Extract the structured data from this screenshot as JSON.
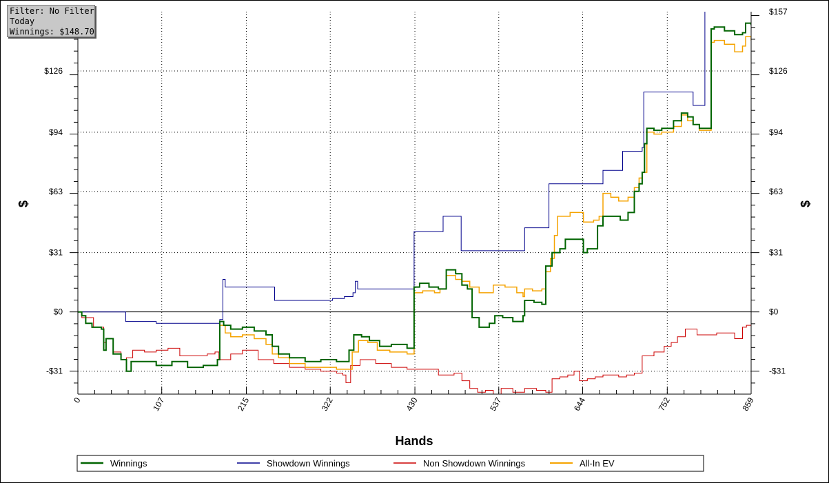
{
  "info": {
    "filter": "Filter: No Filter",
    "period": "Today",
    "winnings": "Winnings: $148.70"
  },
  "chart_data": {
    "type": "line",
    "title": "",
    "xlabel": "Hands",
    "ylabel": "$",
    "xlim": [
      0,
      859
    ],
    "ylim": [
      -43,
      157
    ],
    "x_ticks": [
      0,
      107,
      215,
      322,
      430,
      537,
      644,
      752,
      859
    ],
    "y_ticks": [
      {
        "value": 157,
        "label": "$157"
      },
      {
        "value": 126,
        "label": "$126"
      },
      {
        "value": 94,
        "label": "$94"
      },
      {
        "value": 63,
        "label": "$63"
      },
      {
        "value": 31,
        "label": "$31"
      },
      {
        "value": 0,
        "label": "$0"
      },
      {
        "value": -31,
        "label": "-$31"
      }
    ],
    "grid": true,
    "legend": "bottom",
    "series": [
      {
        "name": "Winnings",
        "color": "#006400",
        "width": 2,
        "points": [
          [
            0,
            0
          ],
          [
            5,
            -2
          ],
          [
            10,
            -6
          ],
          [
            18,
            -8
          ],
          [
            30,
            -9
          ],
          [
            33,
            -20
          ],
          [
            36,
            -14
          ],
          [
            45,
            -22
          ],
          [
            55,
            -25
          ],
          [
            62,
            -31
          ],
          [
            68,
            -26
          ],
          [
            80,
            -26
          ],
          [
            100,
            -28
          ],
          [
            120,
            -26
          ],
          [
            140,
            -29
          ],
          [
            160,
            -28
          ],
          [
            178,
            -25
          ],
          [
            181,
            -5
          ],
          [
            186,
            -7
          ],
          [
            195,
            -9
          ],
          [
            210,
            -8
          ],
          [
            225,
            -10
          ],
          [
            240,
            -12
          ],
          [
            248,
            -18
          ],
          [
            256,
            -22
          ],
          [
            270,
            -24
          ],
          [
            290,
            -26
          ],
          [
            310,
            -25
          ],
          [
            330,
            -26
          ],
          [
            343,
            -26
          ],
          [
            346,
            -20
          ],
          [
            352,
            -12
          ],
          [
            362,
            -13
          ],
          [
            372,
            -15
          ],
          [
            385,
            -18
          ],
          [
            400,
            -17
          ],
          [
            420,
            -19
          ],
          [
            428,
            -19
          ],
          [
            429,
            13
          ],
          [
            436,
            15
          ],
          [
            448,
            13
          ],
          [
            460,
            12
          ],
          [
            470,
            22
          ],
          [
            482,
            20
          ],
          [
            490,
            14
          ],
          [
            497,
            12
          ],
          [
            503,
            -3
          ],
          [
            512,
            -8
          ],
          [
            520,
            -8
          ],
          [
            525,
            -6
          ],
          [
            532,
            -2
          ],
          [
            542,
            -3
          ],
          [
            555,
            -5
          ],
          [
            567,
            -5
          ],
          [
            568,
            -2
          ],
          [
            570,
            6
          ],
          [
            582,
            5
          ],
          [
            592,
            4
          ],
          [
            597,
            24
          ],
          [
            605,
            31
          ],
          [
            615,
            33
          ],
          [
            622,
            38
          ],
          [
            632,
            38
          ],
          [
            645,
            31
          ],
          [
            650,
            33
          ],
          [
            658,
            33
          ],
          [
            663,
            45
          ],
          [
            670,
            50
          ],
          [
            680,
            50
          ],
          [
            692,
            48
          ],
          [
            702,
            52
          ],
          [
            710,
            63
          ],
          [
            716,
            67
          ],
          [
            720,
            73
          ],
          [
            723,
            88
          ],
          [
            726,
            96
          ],
          [
            735,
            95
          ],
          [
            745,
            96
          ],
          [
            752,
            96
          ],
          [
            760,
            100
          ],
          [
            770,
            104
          ],
          [
            778,
            102
          ],
          [
            785,
            98
          ],
          [
            793,
            96
          ],
          [
            802,
            96
          ],
          [
            808,
            148
          ],
          [
            812,
            149
          ],
          [
            825,
            147
          ],
          [
            838,
            145
          ],
          [
            848,
            146
          ],
          [
            852,
            151
          ],
          [
            859,
            150
          ]
        ]
      },
      {
        "name": "Showdown Winnings",
        "color": "#00008b",
        "width": 1,
        "points": [
          [
            0,
            0
          ],
          [
            60,
            0
          ],
          [
            61,
            -5
          ],
          [
            80,
            -5
          ],
          [
            100,
            -6
          ],
          [
            140,
            -6
          ],
          [
            175,
            -6
          ],
          [
            181,
            -4
          ],
          [
            185,
            17
          ],
          [
            188,
            13
          ],
          [
            230,
            13
          ],
          [
            250,
            13
          ],
          [
            251,
            6
          ],
          [
            300,
            6
          ],
          [
            325,
            7
          ],
          [
            340,
            8
          ],
          [
            351,
            10
          ],
          [
            354,
            16
          ],
          [
            357,
            12
          ],
          [
            400,
            12
          ],
          [
            428,
            12
          ],
          [
            429,
            42
          ],
          [
            465,
            42
          ],
          [
            466,
            50
          ],
          [
            488,
            50
          ],
          [
            489,
            32
          ],
          [
            520,
            32
          ],
          [
            565,
            32
          ],
          [
            570,
            44
          ],
          [
            597,
            44
          ],
          [
            601,
            67
          ],
          [
            665,
            67
          ],
          [
            670,
            74
          ],
          [
            690,
            74
          ],
          [
            695,
            84
          ],
          [
            715,
            84
          ],
          [
            720,
            86
          ],
          [
            722,
            115
          ],
          [
            780,
            115
          ],
          [
            785,
            108
          ],
          [
            797,
            108
          ],
          [
            800,
            158
          ],
          [
            805,
            162
          ]
        ]
      },
      {
        "name": "Non Showdown Winnings",
        "color": "#cc0000",
        "width": 1,
        "points": [
          [
            0,
            0
          ],
          [
            5,
            -3
          ],
          [
            20,
            -8
          ],
          [
            33,
            -16
          ],
          [
            36,
            -14
          ],
          [
            45,
            -21
          ],
          [
            55,
            -25
          ],
          [
            62,
            -24
          ],
          [
            70,
            -20
          ],
          [
            85,
            -21
          ],
          [
            100,
            -20
          ],
          [
            115,
            -19
          ],
          [
            130,
            -23
          ],
          [
            150,
            -23
          ],
          [
            165,
            -22
          ],
          [
            175,
            -21
          ],
          [
            180,
            -25
          ],
          [
            195,
            -22
          ],
          [
            210,
            -20
          ],
          [
            230,
            -25
          ],
          [
            250,
            -27
          ],
          [
            270,
            -29
          ],
          [
            290,
            -30
          ],
          [
            310,
            -31
          ],
          [
            322,
            -31
          ],
          [
            330,
            -32
          ],
          [
            338,
            -33
          ],
          [
            342,
            -37
          ],
          [
            348,
            -28
          ],
          [
            360,
            -25
          ],
          [
            380,
            -27
          ],
          [
            400,
            -29
          ],
          [
            420,
            -30
          ],
          [
            440,
            -30
          ],
          [
            460,
            -33
          ],
          [
            480,
            -32
          ],
          [
            490,
            -36
          ],
          [
            500,
            -40
          ],
          [
            510,
            -42
          ],
          [
            520,
            -41
          ],
          [
            530,
            -43
          ],
          [
            540,
            -40
          ],
          [
            555,
            -42
          ],
          [
            570,
            -40
          ],
          [
            585,
            -41
          ],
          [
            597,
            -42
          ],
          [
            605,
            -35
          ],
          [
            615,
            -34
          ],
          [
            625,
            -33
          ],
          [
            633,
            -31
          ],
          [
            640,
            -36
          ],
          [
            650,
            -35
          ],
          [
            660,
            -34
          ],
          [
            670,
            -33
          ],
          [
            690,
            -34
          ],
          [
            700,
            -33
          ],
          [
            710,
            -32
          ],
          [
            720,
            -23
          ],
          [
            735,
            -21
          ],
          [
            748,
            -18
          ],
          [
            757,
            -16
          ],
          [
            765,
            -13
          ],
          [
            775,
            -9
          ],
          [
            790,
            -12
          ],
          [
            805,
            -12
          ],
          [
            815,
            -11
          ],
          [
            830,
            -11
          ],
          [
            838,
            -14
          ],
          [
            848,
            -8
          ],
          [
            853,
            -7
          ],
          [
            859,
            -8
          ]
        ]
      },
      {
        "name": "All-In EV",
        "color": "#f5a300",
        "width": 1.5,
        "points": [
          [
            181,
            -7
          ],
          [
            188,
            -11
          ],
          [
            195,
            -13
          ],
          [
            210,
            -12
          ],
          [
            225,
            -14
          ],
          [
            240,
            -17
          ],
          [
            248,
            -22
          ],
          [
            256,
            -24
          ],
          [
            270,
            -27
          ],
          [
            290,
            -29
          ],
          [
            310,
            -29
          ],
          [
            330,
            -30
          ],
          [
            343,
            -30
          ],
          [
            350,
            -21
          ],
          [
            358,
            -15
          ],
          [
            370,
            -16
          ],
          [
            382,
            -20
          ],
          [
            398,
            -21
          ],
          [
            420,
            -22
          ],
          [
            428,
            -22
          ],
          [
            429,
            10
          ],
          [
            440,
            11
          ],
          [
            455,
            10
          ],
          [
            462,
            12
          ],
          [
            470,
            19
          ],
          [
            482,
            17
          ],
          [
            490,
            16
          ],
          [
            500,
            13
          ],
          [
            512,
            10
          ],
          [
            520,
            10
          ],
          [
            530,
            14
          ],
          [
            545,
            13
          ],
          [
            560,
            10
          ],
          [
            568,
            8
          ],
          [
            570,
            12
          ],
          [
            580,
            11
          ],
          [
            592,
            12
          ],
          [
            597,
            21
          ],
          [
            603,
            28
          ],
          [
            608,
            40
          ],
          [
            612,
            50
          ],
          [
            628,
            52
          ],
          [
            638,
            52
          ],
          [
            645,
            47
          ],
          [
            658,
            48
          ],
          [
            665,
            50
          ],
          [
            670,
            62
          ],
          [
            680,
            60
          ],
          [
            690,
            58
          ],
          [
            702,
            60
          ],
          [
            710,
            65
          ],
          [
            716,
            70
          ],
          [
            720,
            73
          ],
          [
            726,
            94
          ],
          [
            735,
            93
          ],
          [
            745,
            94
          ],
          [
            752,
            94
          ],
          [
            760,
            97
          ],
          [
            770,
            103
          ],
          [
            778,
            100
          ],
          [
            785,
            98
          ],
          [
            793,
            95
          ],
          [
            802,
            95
          ],
          [
            808,
            141
          ],
          [
            812,
            142
          ],
          [
            825,
            140
          ],
          [
            838,
            136
          ],
          [
            848,
            139
          ],
          [
            852,
            144
          ],
          [
            859,
            142
          ]
        ]
      }
    ]
  }
}
